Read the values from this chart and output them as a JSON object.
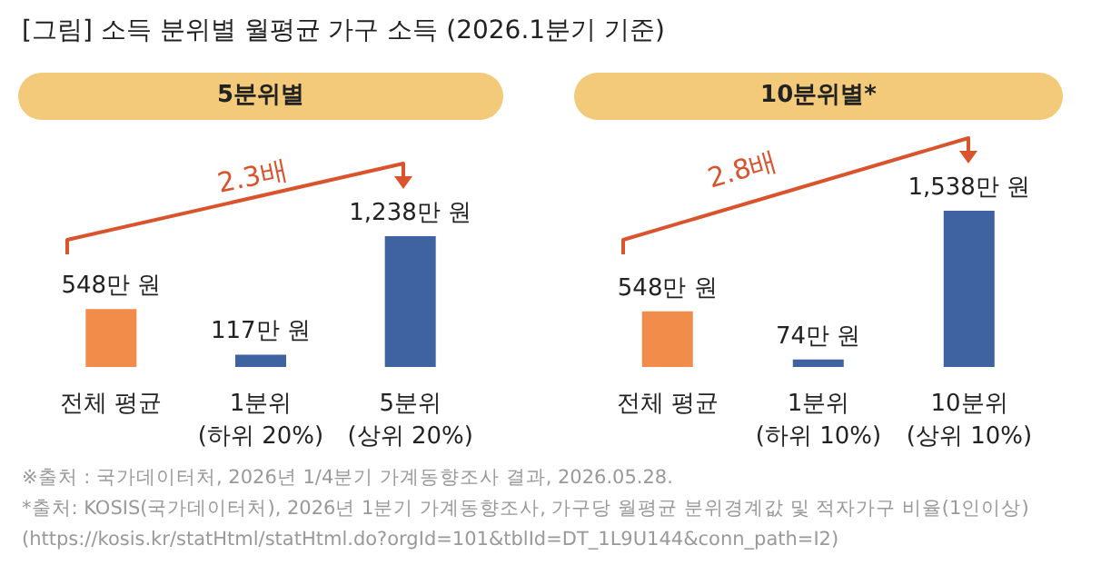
{
  "chart_data": [
    {
      "type": "bar",
      "title": "[그림] 소득 분위별 월평균 가구 소득 (2026.1분기 기준)",
      "subtitle": "5분위별",
      "categories": [
        "전체 평균",
        "1분위\n(하위 20%)",
        "5분위\n(상위 20%)"
      ],
      "values": [
        548,
        117,
        1238
      ],
      "colors": [
        "#f28c4a",
        "#3f62a0",
        "#3f62a0"
      ],
      "value_labels": [
        "548만 원",
        "117만 원",
        "1,238만 원"
      ],
      "annotations": [
        "2.3배"
      ]
    },
    {
      "type": "bar",
      "subtitle": "10분위별*",
      "categories": [
        "전체 평균",
        "1분위\n(하위 10%)",
        "10분위\n(상위 10%)"
      ],
      "values": [
        548,
        74,
        1538
      ],
      "colors": [
        "#f28c4a",
        "#3f62a0",
        "#3f62a0"
      ],
      "value_labels": [
        "548만 원",
        "74만 원",
        "1,538만 원"
      ],
      "annotations": [
        "2.8배",
        "※출처 : 국가데이터처, 2026년 1/4분기 가계동향조사 결과, 2026.05.28.",
        "*출처: KOSIS(국가데이터처), 2026년 1분기 가계동향조사, 가구당 월평균 분위경계값 및 적자가구 비율(1인이상)",
        "(https://kosis.kr/statHtml/statHtml.do?orgId=101&tblId=DT_1L9U144&conn_path=I2)"
      ]
    }
  ]
}
